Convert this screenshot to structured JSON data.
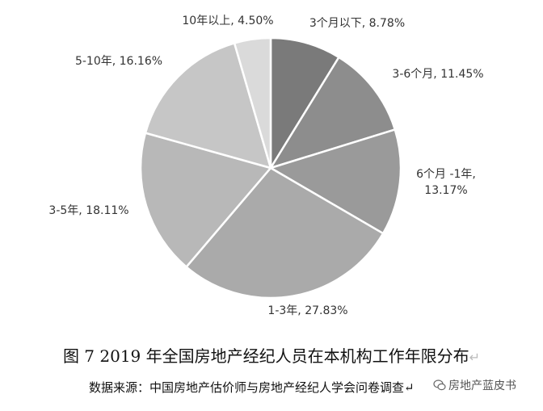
{
  "chart_data": {
    "type": "pie",
    "title": "图 7  2019 年全国房地产经纪人员在本机构工作年限分布",
    "start_angle_deg": 0,
    "direction": "clockwise",
    "slices": [
      {
        "label": "3个月以下",
        "value": 8.78,
        "display": "3个月以下, 8.78%",
        "color": "#7a7a7a"
      },
      {
        "label": "3-6个月",
        "value": 11.45,
        "display": "3-6个月, 11.45%",
        "color": "#8d8d8d"
      },
      {
        "label": "6个月-1年",
        "value": 13.17,
        "display_lines": [
          "6个月 -1年,",
          "13.17%"
        ],
        "color": "#9a9a9a"
      },
      {
        "label": "1-3年",
        "value": 27.83,
        "display": "1-3年, 27.83%",
        "color": "#aaaaaa"
      },
      {
        "label": "3-5年",
        "value": 18.11,
        "display": "3-5年, 18.11%",
        "color": "#b8b8b8"
      },
      {
        "label": "5-10年",
        "value": 16.16,
        "display": "5-10年, 16.16%",
        "color": "#c6c6c6"
      },
      {
        "label": "10年以上",
        "value": 4.5,
        "display": "10年以上, 4.50%",
        "color": "#dadada"
      }
    ]
  },
  "caption": {
    "text": "图 7  2019 年全国房地产经纪人员在本机构工作年限分布",
    "mark": "↵"
  },
  "source": "数据来源：中国房地产估价师与房地产经纪人学会问卷调查↵",
  "watermark": {
    "text": "房地产蓝皮书",
    "icon": "wechat-icon"
  }
}
